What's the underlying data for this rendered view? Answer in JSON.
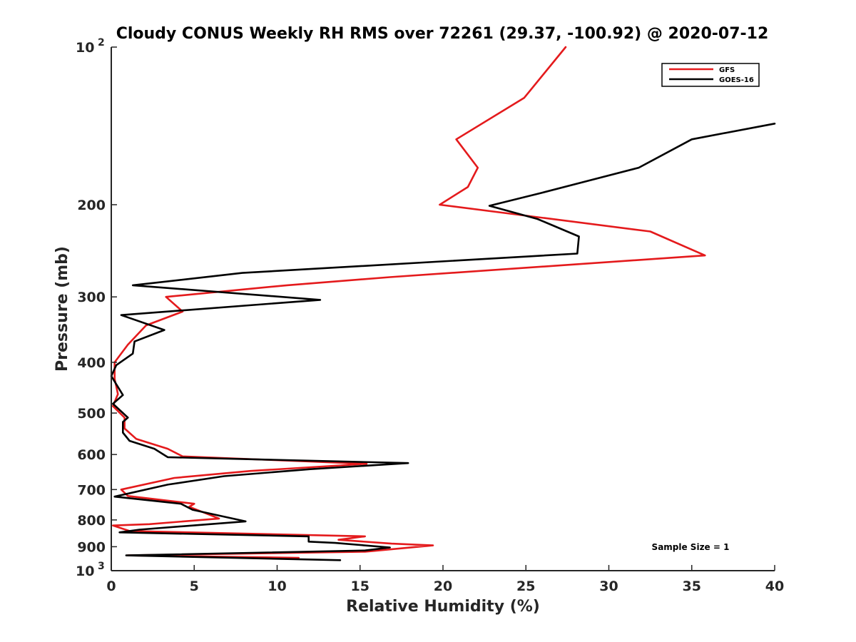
{
  "chart_data": {
    "type": "line",
    "title": "Cloudy CONUS Weekly RH RMS over 72261 (29.37, -100.92) @ 2020-07-12",
    "xlabel": "Relative Humidity (%)",
    "ylabel": "Pressure (mb)",
    "xlim": [
      0,
      40
    ],
    "ylim": [
      100,
      1000
    ],
    "yscale": "log",
    "y_reversed": true,
    "xticks": [
      0,
      5,
      10,
      15,
      20,
      25,
      30,
      35,
      40
    ],
    "yticks": [
      {
        "value": 100,
        "base": "10",
        "exp": "2",
        "label": ""
      },
      {
        "value": 200,
        "label": "200"
      },
      {
        "value": 300,
        "label": "300"
      },
      {
        "value": 400,
        "label": "400"
      },
      {
        "value": 500,
        "label": "500"
      },
      {
        "value": 600,
        "label": "600"
      },
      {
        "value": 700,
        "label": "700"
      },
      {
        "value": 800,
        "label": "800"
      },
      {
        "value": 900,
        "label": "900"
      },
      {
        "value": 1000,
        "base": "10",
        "exp": "3",
        "label": ""
      }
    ],
    "legend_position": "top-right",
    "annotation": "Sample Size = 1",
    "series": [
      {
        "name": "GFS",
        "color": "#e41a1c",
        "points": [
          [
            27.4,
            100
          ],
          [
            24.9,
            125
          ],
          [
            20.8,
            150
          ],
          [
            22.1,
            170
          ],
          [
            21.5,
            185
          ],
          [
            19.8,
            200
          ],
          [
            32.5,
            225
          ],
          [
            35.8,
            250
          ],
          [
            16.8,
            275
          ],
          [
            10.6,
            285
          ],
          [
            3.3,
            300
          ],
          [
            4.3,
            320
          ],
          [
            2.1,
            340
          ],
          [
            1.0,
            370
          ],
          [
            0.2,
            400
          ],
          [
            0.2,
            430
          ],
          [
            0.4,
            460
          ],
          [
            0.1,
            485
          ],
          [
            0.8,
            510
          ],
          [
            0.8,
            535
          ],
          [
            1.5,
            560
          ],
          [
            3.4,
            585
          ],
          [
            4.3,
            605
          ],
          [
            15.4,
            625
          ],
          [
            8.4,
            645
          ],
          [
            3.8,
            665
          ],
          [
            0.6,
            700
          ],
          [
            1.0,
            720
          ],
          [
            5.0,
            745
          ],
          [
            4.7,
            755
          ],
          [
            6.5,
            795
          ],
          [
            2.3,
            815
          ],
          [
            0.1,
            820
          ],
          [
            1.1,
            840
          ],
          [
            15.3,
            860
          ],
          [
            13.7,
            873
          ],
          [
            16.9,
            888
          ],
          [
            19.4,
            895
          ],
          [
            15.3,
            920
          ],
          [
            1.0,
            935
          ],
          [
            11.3,
            945
          ]
        ]
      },
      {
        "name": "GOES-16",
        "color": "#000000",
        "points": [
          [
            40.0,
            140
          ],
          [
            35.0,
            150
          ],
          [
            31.8,
            170
          ],
          [
            25.9,
            190
          ],
          [
            22.8,
            201
          ],
          [
            25.7,
            213
          ],
          [
            28.2,
            230
          ],
          [
            28.1,
            248
          ],
          [
            7.9,
            270
          ],
          [
            1.3,
            285
          ],
          [
            12.6,
            304
          ],
          [
            0.6,
            325
          ],
          [
            3.2,
            347
          ],
          [
            1.4,
            365
          ],
          [
            1.3,
            385
          ],
          [
            0.3,
            405
          ],
          [
            0.0,
            425
          ],
          [
            0.7,
            462
          ],
          [
            0.1,
            480
          ],
          [
            1.0,
            510
          ],
          [
            0.7,
            520
          ],
          [
            0.7,
            545
          ],
          [
            1.1,
            565
          ],
          [
            2.6,
            585
          ],
          [
            3.4,
            607
          ],
          [
            17.9,
            623
          ],
          [
            12.0,
            640
          ],
          [
            6.8,
            660
          ],
          [
            3.4,
            685
          ],
          [
            0.2,
            722
          ],
          [
            4.2,
            745
          ],
          [
            4.9,
            765
          ],
          [
            8.1,
            805
          ],
          [
            1.7,
            835
          ],
          [
            0.5,
            845
          ],
          [
            11.9,
            860
          ],
          [
            11.9,
            880
          ],
          [
            13.5,
            885
          ],
          [
            16.8,
            903
          ],
          [
            15.3,
            915
          ],
          [
            0.9,
            935
          ],
          [
            13.8,
            955
          ]
        ]
      }
    ]
  }
}
